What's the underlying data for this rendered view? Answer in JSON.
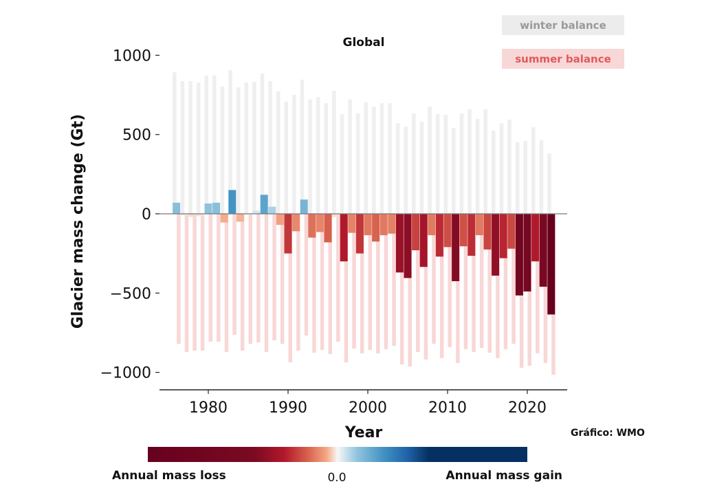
{
  "chart_data": {
    "type": "bar",
    "title": "Global",
    "xlabel": "Year",
    "ylabel": "Glacier mass change (Gt)",
    "ylim": [
      -1100,
      1100
    ],
    "yticks": [
      1000,
      500,
      0,
      -500,
      -1000
    ],
    "ytick_labels": [
      "1000",
      "500",
      "0",
      "−500",
      "−1000"
    ],
    "xticks": [
      1980,
      1990,
      2000,
      2010,
      2020
    ],
    "xtick_labels": [
      "1980",
      "1990",
      "2000",
      "2010",
      "2020"
    ],
    "grid": false,
    "legend": {
      "placement": "top-right",
      "entries": [
        {
          "label": "winter balance",
          "color": "#ececec",
          "text_color": "#999999"
        },
        {
          "label": "summer balance",
          "color": "#f8d7d7",
          "text_color": "#e05a5a"
        }
      ]
    },
    "years": [
      1976,
      1977,
      1978,
      1979,
      1980,
      1981,
      1982,
      1983,
      1984,
      1985,
      1986,
      1987,
      1988,
      1989,
      1990,
      1991,
      1992,
      1993,
      1994,
      1995,
      1996,
      1997,
      1998,
      1999,
      2000,
      2001,
      2002,
      2003,
      2004,
      2005,
      2006,
      2007,
      2008,
      2009,
      2010,
      2011,
      2012,
      2013,
      2014,
      2015,
      2016,
      2017,
      2018,
      2019,
      2020,
      2021,
      2022,
      2023
    ],
    "series": [
      {
        "name": "winter balance",
        "values": [
          893,
          837,
          837,
          828,
          872,
          872,
          802,
          906,
          798,
          828,
          833,
          885,
          837,
          772,
          707,
          750,
          846,
          720,
          737,
          698,
          776,
          629,
          720,
          633,
          703,
          676,
          698,
          698,
          572,
          550,
          633,
          581,
          676,
          629,
          624,
          542,
          633,
          659,
          598,
          659,
          525,
          572,
          594,
          451,
          460,
          546,
          464,
          382
        ]
      },
      {
        "name": "summer balance",
        "values": [
          -820,
          -872,
          -863,
          -863,
          -807,
          -807,
          -872,
          -763,
          -863,
          -820,
          -811,
          -872,
          -798,
          -820,
          -937,
          -863,
          -768,
          -876,
          -859,
          -885,
          -807,
          -937,
          -850,
          -880,
          -859,
          -880,
          -854,
          -833,
          -950,
          -963,
          -872,
          -919,
          -820,
          -910,
          -841,
          -941,
          -854,
          -872,
          -846,
          -876,
          -910,
          -854,
          -820,
          -971,
          -958,
          -880,
          -941,
          -1015
        ]
      },
      {
        "values": [
          70,
          -10,
          -20,
          -15,
          65,
          70,
          -55,
          150,
          -50,
          -5,
          20,
          120,
          45,
          -70,
          -250,
          -110,
          90,
          -150,
          -115,
          -180,
          -20,
          -300,
          -120,
          -250,
          -135,
          -175,
          -135,
          -125,
          -370,
          -405,
          -230,
          -335,
          -135,
          -270,
          -210,
          -425,
          -205,
          -265,
          -135,
          -225,
          -390,
          -280,
          -220,
          -515,
          -490,
          -300,
          -460,
          -635
        ]
      }
    ],
    "colorbar": {
      "colormap": "RdBu",
      "left_label": "Annual mass loss",
      "center_label": "0.0",
      "right_label": "Annual mass gain"
    },
    "credit": "Gráfico: WMO"
  }
}
